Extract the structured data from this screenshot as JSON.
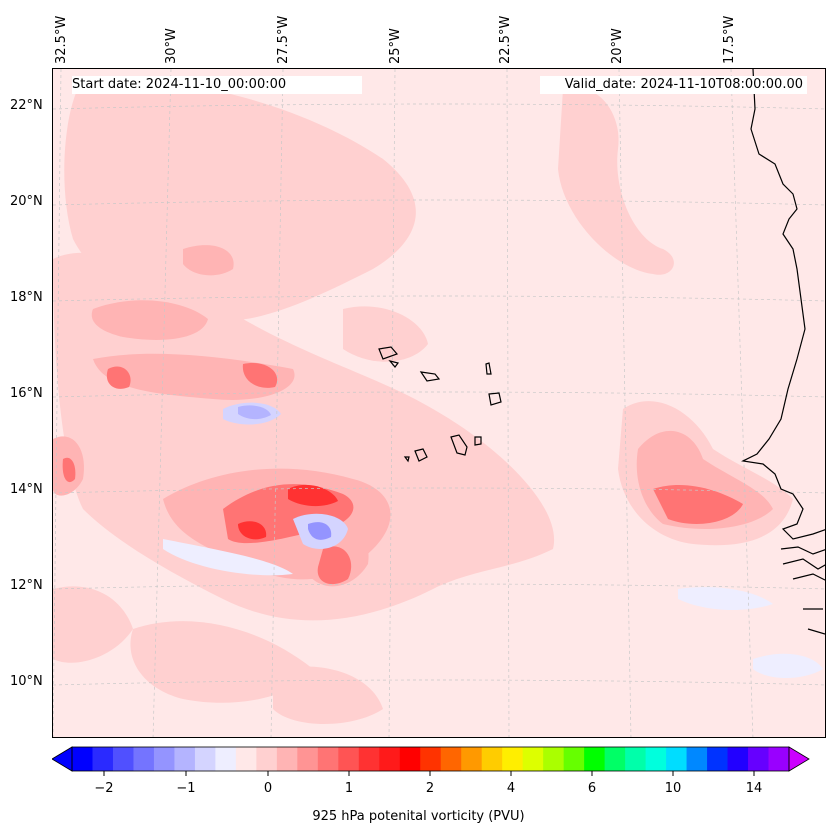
{
  "map": {
    "start_date": "Start date: 2024-11-10_00:00:00",
    "valid_date": "Valid_date: 2024-11-10T08:00:00.00",
    "lon_labels": [
      "32.5°W",
      "30°W",
      "27.5°W",
      "25°W",
      "22.5°W",
      "20°W",
      "17.5°W"
    ],
    "lat_labels": [
      "22°N",
      "20°N",
      "18°N",
      "16°N",
      "14°N",
      "12°N",
      "10°N"
    ],
    "background_color": "#ffe8e8",
    "grid": "dashed light gray"
  },
  "colorbar": {
    "tick_labels": [
      "−2",
      "−1",
      "0",
      "1",
      "2",
      "4",
      "6",
      "10",
      "14"
    ],
    "label": "925 hPa potenital vorticity (PVU)",
    "colors": [
      "#0000ff",
      "#2a2aff",
      "#5050ff",
      "#7474ff",
      "#9494ff",
      "#b4b4ff",
      "#d4d4ff",
      "#eeeeff",
      "#ffe8e8",
      "#ffd0d0",
      "#ffb4b4",
      "#ff9494",
      "#ff7474",
      "#ff5454",
      "#ff3232",
      "#ff1a1a",
      "#ff0000",
      "#ff3300",
      "#ff6600",
      "#ff9900",
      "#ffcc00",
      "#ffee00",
      "#ddff00",
      "#aaff00",
      "#66ff00",
      "#00ff00",
      "#00ff66",
      "#00ffaa",
      "#00ffdd",
      "#00ddff",
      "#0088ff",
      "#0033ff",
      "#2200ff",
      "#6600ff",
      "#9900ff"
    ],
    "extend_min_color": "#0000ff",
    "extend_max_color": "#cc00ff"
  }
}
